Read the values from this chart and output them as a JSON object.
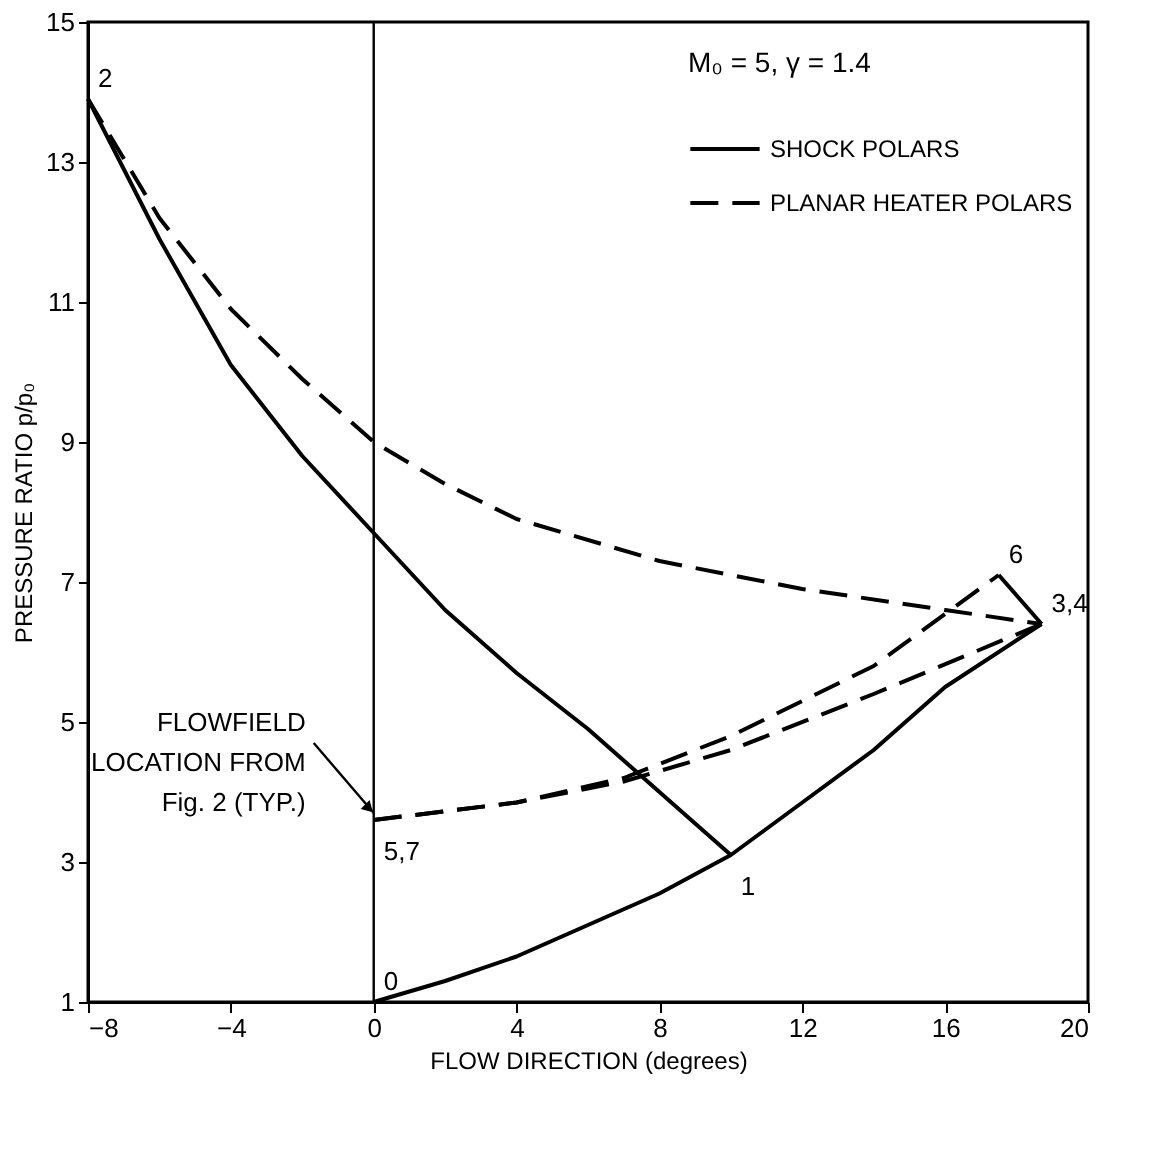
{
  "chart_data": {
    "type": "line",
    "xlabel": "FLOW DIRECTION  (degrees)",
    "ylabel": "PRESSURE RATIO p/p₀",
    "xlim": [
      -8,
      20
    ],
    "xticks": [
      -8,
      -4,
      0,
      4,
      8,
      12,
      16,
      20
    ],
    "ylim": [
      1,
      15
    ],
    "yticks": [
      1,
      3,
      5,
      7,
      9,
      11,
      13,
      15
    ],
    "grid": false,
    "legend": "top right",
    "marker": "none",
    "series": [
      {
        "name": "SHOCK POLARS",
        "color": "#000000",
        "line_style": "solid",
        "x": [
          -8,
          -6,
          -4,
          -2,
          0,
          2,
          4,
          6,
          8,
          10
        ],
        "values": [
          13.9,
          11.9,
          10.1,
          8.8,
          7.7,
          6.6,
          5.7,
          4.9,
          4.0,
          3.1
        ]
      },
      {
        "color": "#000000",
        "line_style": "solid",
        "x": [
          0,
          2,
          4,
          6,
          8,
          10,
          12,
          14,
          16,
          18.7
        ],
        "values": [
          1.0,
          1.3,
          1.65,
          2.1,
          2.55,
          3.1,
          3.85,
          4.6,
          5.5,
          6.4
        ]
      },
      {
        "color": "#000000",
        "line_style": "solid",
        "x": [
          17.5,
          18.7
        ],
        "values": [
          7.1,
          6.4
        ]
      },
      {
        "name": "PLANAR HEATER POLARS",
        "color": "#000000",
        "line_style": "dashed",
        "x": [
          -8,
          -6,
          -4,
          -2,
          0,
          2,
          4,
          8,
          12,
          16,
          18.7
        ],
        "values": [
          13.9,
          12.2,
          10.9,
          9.9,
          9.0,
          8.4,
          7.9,
          7.3,
          6.9,
          6.6,
          6.4
        ]
      },
      {
        "color": "#000000",
        "line_style": "dashed",
        "x": [
          0,
          4,
          7,
          10,
          14,
          18.7
        ],
        "values": [
          3.6,
          3.85,
          4.15,
          4.6,
          5.4,
          6.4
        ]
      },
      {
        "color": "#000000",
        "line_style": "dashed",
        "x": [
          0,
          4,
          7,
          10,
          14,
          17.5
        ],
        "values": [
          3.6,
          3.85,
          4.2,
          4.8,
          5.8,
          7.1
        ]
      }
    ],
    "ref_lines": [
      {
        "axis": "x",
        "value": 0,
        "color": "#000000"
      }
    ],
    "annotations": [
      "M₀ = 5,  γ = 1.4",
      {
        "text": "FLOWFIELD\nLOCATION FROM\nFig. 2 (TYP.)",
        "x": 0,
        "y": 3.7
      },
      {
        "text": "0",
        "x": 0,
        "y": 1.0
      },
      {
        "text": "1",
        "x": 10,
        "y": 3.1
      },
      {
        "text": "2",
        "x": -8,
        "y": 13.9
      },
      {
        "text": "3,4",
        "x": 18.7,
        "y": 6.4
      },
      {
        "text": "5,7",
        "x": 0,
        "y": 3.6
      },
      {
        "text": "6",
        "x": 17.5,
        "y": 7.1
      }
    ]
  }
}
